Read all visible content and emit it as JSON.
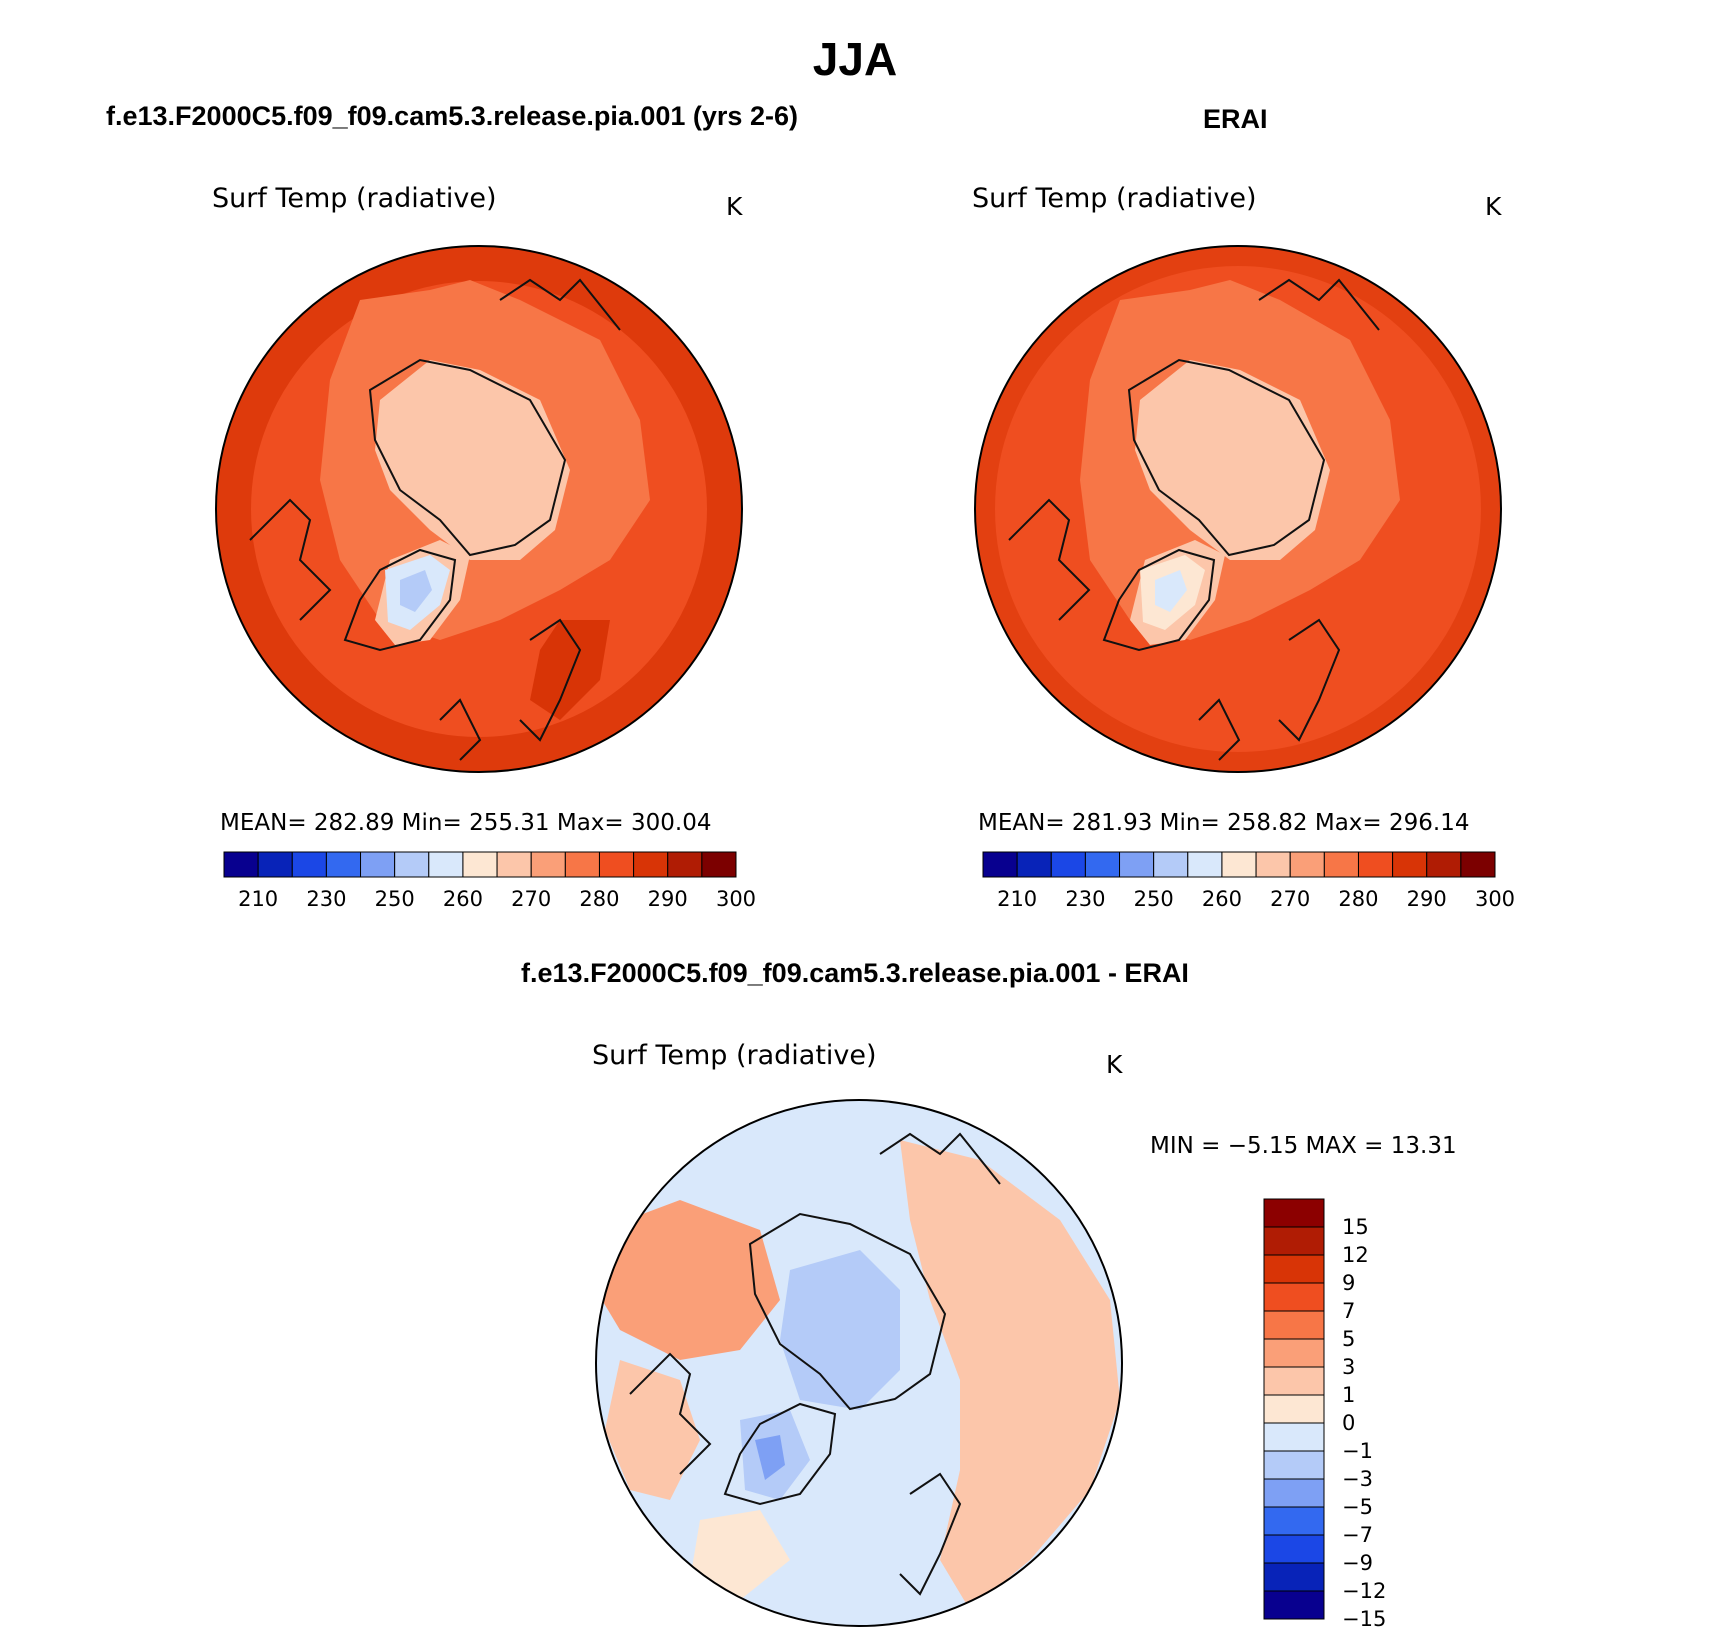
{
  "title": "JJA",
  "colors": {
    "abs_scale": [
      "#08008f",
      "#0823b8",
      "#1b47e6",
      "#3369f0",
      "#7ea0f4",
      "#b4cbf8",
      "#d9e8fb",
      "#fde7d3",
      "#fcc6aa",
      "#fa9f78",
      "#f77647",
      "#ef4e20",
      "#d83406",
      "#b01c04",
      "#7c0000"
    ],
    "diff_scale": [
      "#08008f",
      "#0823b8",
      "#1b47e6",
      "#3369f0",
      "#7ea0f4",
      "#b4cbf8",
      "#d9e8fb",
      "#fde7d3",
      "#fcc6aa",
      "#fa9f78",
      "#f77647",
      "#ef4e20",
      "#d83406",
      "#b01c04",
      "#8c0000"
    ],
    "coastline": "#111111"
  },
  "panels": [
    {
      "title": "f.e13.F2000C5.f09_f09.cam5.3.release.pia.001 (yrs 2-6)",
      "variable": "Surf Temp (radiative)",
      "unit": "K",
      "stats": "MEAN=  282.89    Min=  255.31    Max=  300.04",
      "colorbar_ticks": [
        "210",
        "230",
        "250",
        "260",
        "270",
        "280",
        "290",
        "300"
      ]
    },
    {
      "title": "ERAI",
      "variable": "Surf Temp (radiative)",
      "unit": "K",
      "stats": "MEAN=  281.93    Min=  258.82    Max=  296.14",
      "colorbar_ticks": [
        "210",
        "230",
        "250",
        "260",
        "270",
        "280",
        "290",
        "300"
      ]
    },
    {
      "title": "f.e13.F2000C5.f09_f09.cam5.3.release.pia.001 - ERAI",
      "variable": "Surf Temp (radiative)",
      "unit": "K",
      "stats": "MIN =   −5.15  MAX =    13.31",
      "colorbar_ticks": [
        "15",
        "12",
        "9",
        "7",
        "5",
        "3",
        "1",
        "0",
        "−1",
        "−3",
        "−5",
        "−7",
        "−9",
        "−12",
        "−15"
      ]
    }
  ]
}
